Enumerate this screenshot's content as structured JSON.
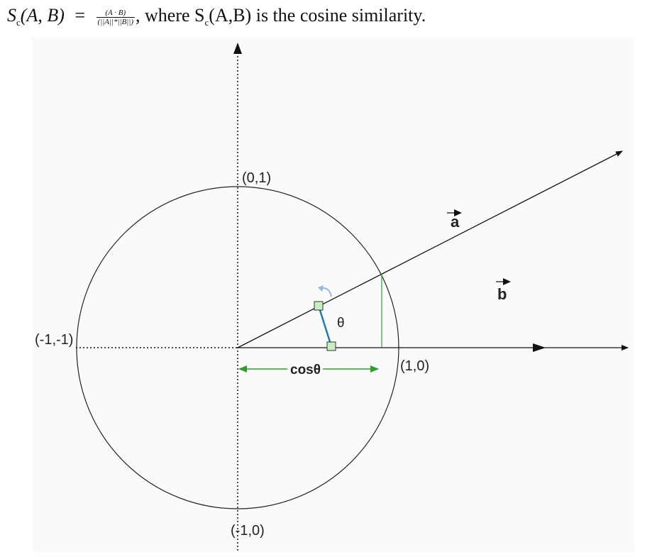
{
  "formula": {
    "lhs_symbol": "S",
    "lhs_subscript": "c",
    "lhs_args": "(A, B)",
    "equals": "=",
    "numerator": "(A · B)",
    "denominator": "(||A||*||B||)",
    "comma": ",",
    "where_text": " where S",
    "where_subscript": "c",
    "where_rest": "(A,B) is the cosine similarity."
  },
  "diagram": {
    "labels": {
      "top": "(0,1)",
      "left": "(-1,-1)",
      "right": "(1,0)",
      "bottom": "(-1,0)",
      "theta": "θ",
      "cos_theta": "cosθ",
      "vector_a": "a",
      "vector_b": "b"
    },
    "colors": {
      "axis": "#111111",
      "cosine_projection": "#2ca02c",
      "angle_marker": "#1f78c1",
      "marker_fill": "#c8efc0",
      "rotation_arrow": "#8fb8e6",
      "background": "#fafafa"
    }
  }
}
